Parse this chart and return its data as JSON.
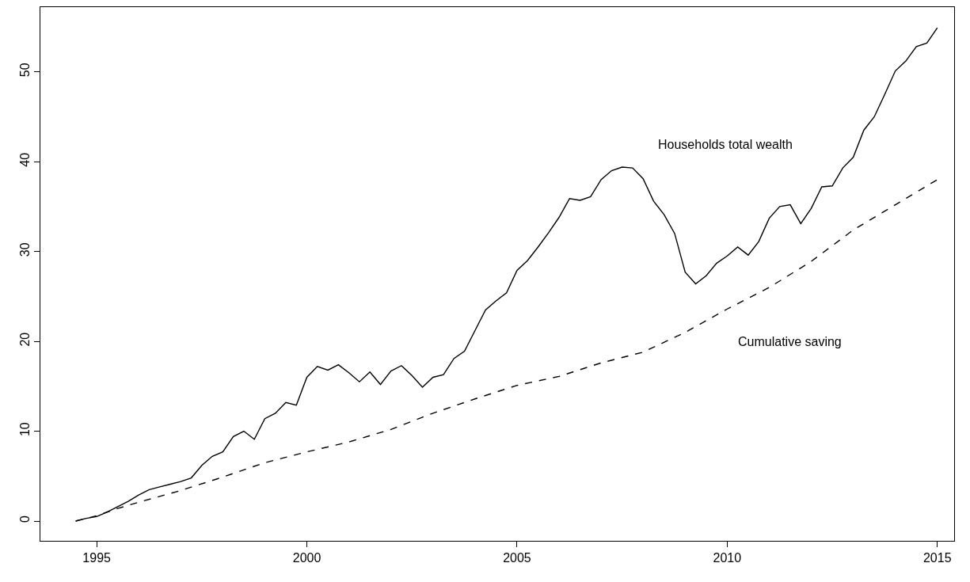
{
  "chart_data": {
    "type": "line",
    "xlim": [
      1993.66,
      2015.4
    ],
    "ylim": [
      -2.2,
      57.2
    ],
    "xticks": [
      1995,
      2000,
      2005,
      2010,
      2015
    ],
    "yticks": [
      0,
      10,
      20,
      30,
      40,
      50
    ],
    "legend": false,
    "marker": "none",
    "series": [
      {
        "name": "Households total wealth",
        "color": "#000000",
        "line_style": "solid",
        "x": [
          1994.5,
          1994.75,
          1995,
          1995.25,
          1995.5,
          1995.75,
          1996,
          1996.25,
          1996.5,
          1996.75,
          1997,
          1997.25,
          1997.5,
          1997.75,
          1998,
          1998.25,
          1998.5,
          1998.75,
          1999,
          1999.25,
          1999.5,
          1999.75,
          2000,
          2000.25,
          2000.5,
          2000.75,
          2001,
          2001.25,
          2001.5,
          2001.75,
          2002,
          2002.25,
          2002.5,
          2002.75,
          2003,
          2003.25,
          2003.5,
          2003.75,
          2004,
          2004.25,
          2004.5,
          2004.75,
          2005,
          2005.25,
          2005.5,
          2005.75,
          2006,
          2006.25,
          2006.5,
          2006.75,
          2007,
          2007.25,
          2007.5,
          2007.75,
          2008,
          2008.25,
          2008.5,
          2008.75,
          2009,
          2009.25,
          2009.5,
          2009.75,
          2010,
          2010.25,
          2010.5,
          2010.75,
          2011,
          2011.25,
          2011.5,
          2011.75,
          2012,
          2012.25,
          2012.5,
          2012.75,
          2013,
          2013.25,
          2013.5,
          2013.75,
          2014,
          2014.25,
          2014.5,
          2014.75,
          2015
        ],
        "values": [
          0,
          0.3,
          0.5,
          1.0,
          1.6,
          2.2,
          2.9,
          3.5,
          3.8,
          4.1,
          4.4,
          4.8,
          6.2,
          7.2,
          7.7,
          9.4,
          10.0,
          9.1,
          11.4,
          12.0,
          13.2,
          12.9,
          16.0,
          17.2,
          16.8,
          17.4,
          16.5,
          15.5,
          16.6,
          15.2,
          16.7,
          17.3,
          16.2,
          14.9,
          16.0,
          16.3,
          18.1,
          18.9,
          21.2,
          23.5,
          24.5,
          25.4,
          27.9,
          29.0,
          30.5,
          32.1,
          33.8,
          35.9,
          35.7,
          36.1,
          38.0,
          39.0,
          39.4,
          39.3,
          38.1,
          35.6,
          34.1,
          32.0,
          27.7,
          26.4,
          27.3,
          28.7,
          29.5,
          30.5,
          29.6,
          31.1,
          33.7,
          35.0,
          35.2,
          33.1,
          34.8,
          37.2,
          37.3,
          39.3,
          40.5,
          43.5,
          45.0,
          47.5,
          50.1,
          51.2,
          52.8,
          53.2,
          54.9
        ]
      },
      {
        "name": "Cumulative saving",
        "color": "#000000",
        "line_style": "dashed",
        "x": [
          1994.5,
          1995,
          1995.5,
          1996,
          1997,
          1998,
          1999,
          2000,
          2001,
          2002,
          2003,
          2004,
          2005,
          2006,
          2007,
          2008,
          2009,
          2010,
          2011,
          2012,
          2013,
          2014,
          2015
        ],
        "values": [
          0,
          0.6,
          1.4,
          2.1,
          3.4,
          4.9,
          6.5,
          7.7,
          8.8,
          10.2,
          12.0,
          13.6,
          15.1,
          16.1,
          17.6,
          18.8,
          21.0,
          23.6,
          26.0,
          28.9,
          32.4,
          35.2,
          38.0
        ]
      }
    ]
  }
}
